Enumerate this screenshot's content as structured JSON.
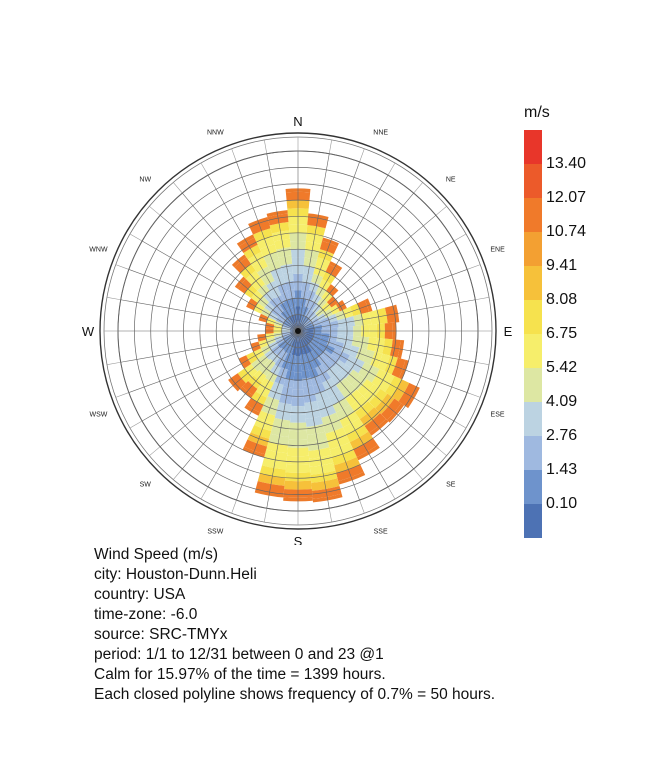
{
  "chart_data": {
    "type": "wind_rose",
    "directions_major": [
      "N",
      "E",
      "S",
      "W"
    ],
    "directions_minor": [
      "NNE",
      "NE",
      "ENE",
      "ESE",
      "SE",
      "SSE",
      "SSW",
      "SW",
      "WSW",
      "WNW",
      "NW",
      "NNW"
    ],
    "legend": {
      "unit": "m/s",
      "ticks": [
        "13.40",
        "12.07",
        "10.74",
        "9.41",
        "8.08",
        "6.75",
        "5.42",
        "4.09",
        "2.76",
        "1.43",
        "0.10"
      ],
      "colors": [
        "#e8362a",
        "#ec5a2a",
        "#f07a2a",
        "#f3a032",
        "#f6c13a",
        "#f6e24e",
        "#f6ee6b",
        "#dde7a3",
        "#bcd3e2",
        "#9fb9e0",
        "#6e93cc",
        "#4d72b4"
      ]
    },
    "frequency_unit_percent": 0.7,
    "sector_extent_rings": [
      8.5,
      7.0,
      5.7,
      4.5,
      3.5,
      3.0,
      3.3,
      4.5,
      6.0,
      5.8,
      6.3,
      6.8,
      8.0,
      7.7,
      7.6,
      8.5,
      9.5,
      10.3,
      10.2,
      10.0,
      7.8,
      5.5,
      4.8,
      5.0,
      4.0,
      3.0,
      2.5,
      2.0,
      2.0,
      2.5,
      3.5,
      4.5,
      5.5,
      6.3,
      7.0,
      7.2
    ]
  },
  "info": {
    "title": "Wind Speed (m/s)",
    "city": "city: Houston-Dunn.Heli",
    "country": "country: USA",
    "timezone": "time-zone: -6.0",
    "source": "source: SRC-TMYx",
    "period": "period: 1/1 to 12/31 between 0 and 23 @1",
    "calm": "Calm for 15.97% of the time = 1399 hours.",
    "polyline": "Each closed polyline shows frequency of 0.7% = 50 hours."
  }
}
